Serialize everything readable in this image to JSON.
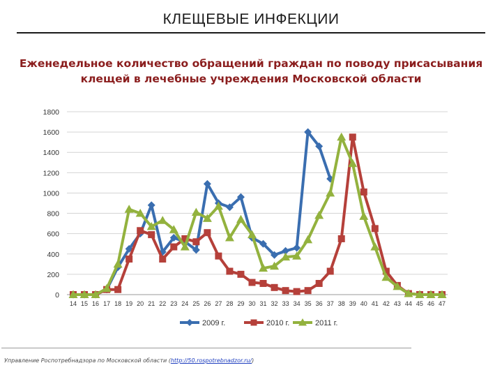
{
  "slide_title": "КЛЕЩЕВЫЕ ИНФЕКЦИИ",
  "chart_data": {
    "type": "line",
    "title_lines": [
      "Еженедельное количество обращений граждан по поводу присасывания",
      "клещей в лечебные учреждения Московской области"
    ],
    "xlabel": "",
    "ylabel": "",
    "ylim": [
      0,
      1800
    ],
    "yticks": [
      0,
      200,
      400,
      600,
      800,
      1000,
      1200,
      1400,
      1600,
      1800
    ],
    "grid": true,
    "legend_position": "bottom",
    "categories": [
      "14",
      "15",
      "16",
      "17",
      "18",
      "19",
      "20",
      "21",
      "22",
      "23",
      "24",
      "25",
      "26",
      "27",
      "28",
      "29",
      "30",
      "31",
      "32",
      "33",
      "34",
      "35",
      "36",
      "37",
      "38",
      "39",
      "40",
      "41",
      "42",
      "43",
      "44",
      "45",
      "46",
      "47"
    ],
    "series": [
      {
        "name": "2009 г.",
        "color": "#3a6eb0",
        "values": [
          0,
          0,
          0,
          50,
          270,
          450,
          600,
          880,
          420,
          560,
          520,
          440,
          1090,
          900,
          860,
          960,
          560,
          500,
          390,
          430,
          460,
          1600,
          1460,
          1140,
          null,
          null,
          null,
          null,
          null,
          null,
          null,
          null,
          null,
          null
        ]
      },
      {
        "name": "2010 г.",
        "color": "#b5403a",
        "values": [
          0,
          0,
          0,
          50,
          50,
          350,
          630,
          590,
          350,
          470,
          550,
          520,
          610,
          380,
          230,
          200,
          120,
          110,
          70,
          40,
          30,
          40,
          110,
          230,
          550,
          1550,
          1010,
          650,
          230,
          90,
          10,
          0,
          0,
          0
        ]
      },
      {
        "name": "2011 г.",
        "color": "#93b23e",
        "values": [
          0,
          0,
          0,
          60,
          300,
          840,
          800,
          670,
          730,
          640,
          470,
          810,
          750,
          870,
          560,
          740,
          590,
          260,
          280,
          370,
          380,
          540,
          780,
          1000,
          1550,
          1290,
          770,
          470,
          170,
          80,
          10,
          0,
          0,
          0
        ]
      }
    ]
  },
  "footer": {
    "text": "Управление Роспотребнадзора по Московской области (",
    "link": "http://50.rospotrebnadzor.ru/",
    "text_end": ")"
  }
}
